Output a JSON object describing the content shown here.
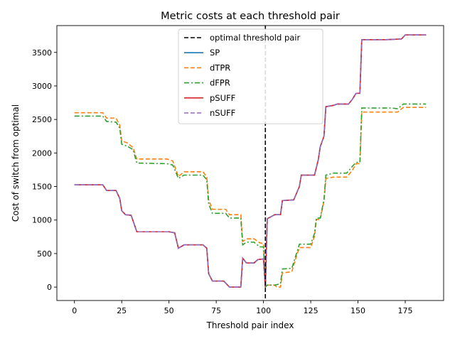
{
  "chart_data": {
    "type": "line",
    "title": "Metric costs at each threshold pair",
    "xlabel": "Threshold pair index",
    "ylabel": "Cost of switch from optimal",
    "xlim": [
      -9.3,
      195.3
    ],
    "ylim": [
      -200,
      3900
    ],
    "xticks": [
      0,
      25,
      50,
      75,
      100,
      125,
      150,
      175
    ],
    "yticks": [
      0,
      500,
      1000,
      1500,
      2000,
      2500,
      3000,
      3500
    ],
    "grid": false,
    "legend_position": "upper center",
    "vline": {
      "name": "optimal threshold pair",
      "x": 101,
      "color": "#000000",
      "dash": "dashed"
    },
    "series": [
      {
        "name": "SP",
        "color": "#1f77b4",
        "dash": "solid",
        "points": [
          [
            0,
            1525
          ],
          [
            15,
            1525
          ],
          [
            17,
            1440
          ],
          [
            22,
            1440
          ],
          [
            24,
            1320
          ],
          [
            25,
            1140
          ],
          [
            27,
            1080
          ],
          [
            30,
            1070
          ],
          [
            33,
            825
          ],
          [
            50,
            825
          ],
          [
            53,
            810
          ],
          [
            55,
            580
          ],
          [
            58,
            630
          ],
          [
            68,
            630
          ],
          [
            70,
            580
          ],
          [
            71,
            200
          ],
          [
            73,
            90
          ],
          [
            79,
            90
          ],
          [
            82,
            0
          ],
          [
            88,
            0
          ],
          [
            89,
            430
          ],
          [
            91,
            360
          ],
          [
            95,
            360
          ],
          [
            97,
            410
          ],
          [
            100,
            420
          ],
          [
            101,
            0
          ],
          [
            102,
            1020
          ],
          [
            106,
            1080
          ],
          [
            109,
            1080
          ],
          [
            110,
            1290
          ],
          [
            116,
            1300
          ],
          [
            119,
            1500
          ],
          [
            120,
            1670
          ],
          [
            127,
            1670
          ],
          [
            129,
            1900
          ],
          [
            130,
            2090
          ],
          [
            132,
            2250
          ],
          [
            133,
            2690
          ],
          [
            137,
            2710
          ],
          [
            139,
            2730
          ],
          [
            145,
            2730
          ],
          [
            147,
            2800
          ],
          [
            149,
            2890
          ],
          [
            151,
            2890
          ],
          [
            152,
            3690
          ],
          [
            165,
            3690
          ],
          [
            173,
            3700
          ],
          [
            175,
            3760
          ],
          [
            186,
            3760
          ]
        ]
      },
      {
        "name": "dTPR",
        "color": "#ff7f0e",
        "dash": "dashed",
        "points": [
          [
            0,
            2600
          ],
          [
            15,
            2600
          ],
          [
            17,
            2520
          ],
          [
            22,
            2520
          ],
          [
            24,
            2410
          ],
          [
            25,
            2180
          ],
          [
            28,
            2150
          ],
          [
            31,
            2080
          ],
          [
            33,
            1910
          ],
          [
            49,
            1910
          ],
          [
            52,
            1880
          ],
          [
            55,
            1650
          ],
          [
            58,
            1720
          ],
          [
            68,
            1720
          ],
          [
            70,
            1640
          ],
          [
            71,
            1300
          ],
          [
            73,
            1160
          ],
          [
            80,
            1160
          ],
          [
            82,
            1080
          ],
          [
            88,
            1080
          ],
          [
            89,
            680
          ],
          [
            91,
            720
          ],
          [
            95,
            720
          ],
          [
            98,
            660
          ],
          [
            100,
            650
          ],
          [
            101,
            0
          ],
          [
            102,
            30
          ],
          [
            106,
            30
          ],
          [
            107,
            0
          ],
          [
            109,
            0
          ],
          [
            110,
            210
          ],
          [
            115,
            230
          ],
          [
            117,
            420
          ],
          [
            119,
            590
          ],
          [
            125,
            590
          ],
          [
            127,
            760
          ],
          [
            128,
            1010
          ],
          [
            130,
            1010
          ],
          [
            132,
            1280
          ],
          [
            133,
            1620
          ],
          [
            137,
            1640
          ],
          [
            144,
            1640
          ],
          [
            147,
            1740
          ],
          [
            149,
            1840
          ],
          [
            151,
            1840
          ],
          [
            152,
            2610
          ],
          [
            165,
            2610
          ],
          [
            171,
            2610
          ],
          [
            174,
            2680
          ],
          [
            186,
            2680
          ]
        ]
      },
      {
        "name": "dFPR",
        "color": "#2ca02c",
        "dash": "dashdot",
        "points": [
          [
            0,
            2550
          ],
          [
            15,
            2550
          ],
          [
            17,
            2470
          ],
          [
            22,
            2460
          ],
          [
            24,
            2370
          ],
          [
            25,
            2130
          ],
          [
            28,
            2100
          ],
          [
            31,
            2050
          ],
          [
            33,
            1850
          ],
          [
            49,
            1840
          ],
          [
            52,
            1820
          ],
          [
            55,
            1620
          ],
          [
            58,
            1670
          ],
          [
            68,
            1670
          ],
          [
            70,
            1600
          ],
          [
            71,
            1240
          ],
          [
            73,
            1100
          ],
          [
            80,
            1100
          ],
          [
            82,
            1030
          ],
          [
            88,
            1030
          ],
          [
            89,
            630
          ],
          [
            91,
            670
          ],
          [
            95,
            670
          ],
          [
            98,
            600
          ],
          [
            100,
            600
          ],
          [
            101,
            0
          ],
          [
            102,
            30
          ],
          [
            106,
            30
          ],
          [
            109,
            50
          ],
          [
            110,
            270
          ],
          [
            115,
            280
          ],
          [
            117,
            460
          ],
          [
            119,
            640
          ],
          [
            125,
            640
          ],
          [
            127,
            800
          ],
          [
            128,
            1030
          ],
          [
            130,
            1030
          ],
          [
            132,
            1300
          ],
          [
            133,
            1670
          ],
          [
            137,
            1700
          ],
          [
            144,
            1700
          ],
          [
            147,
            1800
          ],
          [
            149,
            1860
          ],
          [
            151,
            1860
          ],
          [
            152,
            2670
          ],
          [
            168,
            2670
          ],
          [
            171,
            2660
          ],
          [
            174,
            2730
          ],
          [
            186,
            2730
          ]
        ]
      },
      {
        "name": "pSUFF",
        "color": "#d62728",
        "dash": "solid",
        "points": [
          [
            0,
            1525
          ],
          [
            15,
            1525
          ],
          [
            17,
            1440
          ],
          [
            22,
            1440
          ],
          [
            24,
            1320
          ],
          [
            25,
            1140
          ],
          [
            27,
            1080
          ],
          [
            30,
            1070
          ],
          [
            33,
            825
          ],
          [
            50,
            825
          ],
          [
            53,
            810
          ],
          [
            55,
            580
          ],
          [
            58,
            630
          ],
          [
            68,
            630
          ],
          [
            70,
            580
          ],
          [
            71,
            200
          ],
          [
            73,
            90
          ],
          [
            79,
            90
          ],
          [
            82,
            0
          ],
          [
            88,
            0
          ],
          [
            89,
            430
          ],
          [
            91,
            360
          ],
          [
            95,
            360
          ],
          [
            97,
            410
          ],
          [
            100,
            420
          ],
          [
            101,
            0
          ],
          [
            102,
            1020
          ],
          [
            106,
            1080
          ],
          [
            109,
            1080
          ],
          [
            110,
            1290
          ],
          [
            116,
            1300
          ],
          [
            119,
            1500
          ],
          [
            120,
            1670
          ],
          [
            127,
            1670
          ],
          [
            129,
            1900
          ],
          [
            130,
            2090
          ],
          [
            132,
            2250
          ],
          [
            133,
            2690
          ],
          [
            137,
            2710
          ],
          [
            139,
            2730
          ],
          [
            145,
            2730
          ],
          [
            147,
            2800
          ],
          [
            149,
            2890
          ],
          [
            151,
            2890
          ],
          [
            152,
            3690
          ],
          [
            165,
            3690
          ],
          [
            173,
            3700
          ],
          [
            175,
            3760
          ],
          [
            186,
            3760
          ]
        ]
      },
      {
        "name": "nSUFF",
        "color": "#9467bd",
        "dash": "dashed",
        "points": [
          [
            0,
            1525
          ],
          [
            15,
            1525
          ],
          [
            17,
            1440
          ],
          [
            22,
            1440
          ],
          [
            24,
            1320
          ],
          [
            25,
            1140
          ],
          [
            27,
            1080
          ],
          [
            30,
            1070
          ],
          [
            33,
            825
          ],
          [
            50,
            825
          ],
          [
            53,
            810
          ],
          [
            55,
            580
          ],
          [
            58,
            630
          ],
          [
            68,
            630
          ],
          [
            70,
            580
          ],
          [
            71,
            200
          ],
          [
            73,
            90
          ],
          [
            79,
            90
          ],
          [
            82,
            0
          ],
          [
            88,
            0
          ],
          [
            89,
            430
          ],
          [
            91,
            360
          ],
          [
            95,
            360
          ],
          [
            97,
            410
          ],
          [
            100,
            420
          ],
          [
            101,
            0
          ],
          [
            102,
            1020
          ],
          [
            106,
            1080
          ],
          [
            109,
            1080
          ],
          [
            110,
            1290
          ],
          [
            116,
            1300
          ],
          [
            119,
            1500
          ],
          [
            120,
            1670
          ],
          [
            127,
            1670
          ],
          [
            129,
            1900
          ],
          [
            130,
            2090
          ],
          [
            132,
            2250
          ],
          [
            133,
            2690
          ],
          [
            137,
            2710
          ],
          [
            139,
            2730
          ],
          [
            145,
            2730
          ],
          [
            147,
            2800
          ],
          [
            149,
            2890
          ],
          [
            151,
            2890
          ],
          [
            152,
            3690
          ],
          [
            165,
            3690
          ],
          [
            173,
            3700
          ],
          [
            175,
            3760
          ],
          [
            186,
            3760
          ]
        ]
      }
    ]
  }
}
